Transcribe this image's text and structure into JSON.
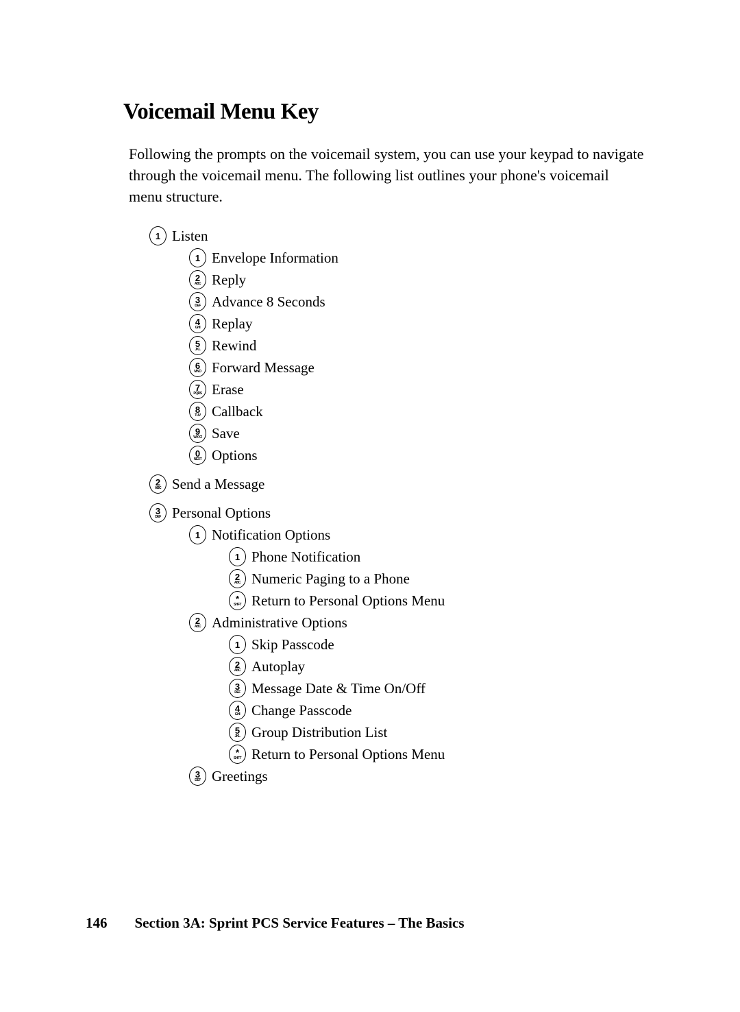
{
  "heading": "Voicemail Menu Key",
  "intro": "Following the prompts on the voicemail system, you can use your keypad to navigate through the voicemail menu. The following list outlines your phone's voicemail menu structure.",
  "menu": {
    "listen": {
      "key": "1",
      "sub": "",
      "label": "Listen"
    },
    "listen_items": [
      {
        "key": "1",
        "sub": "",
        "label": "Envelope Information"
      },
      {
        "key": "2",
        "sub": "ABC",
        "label": "Reply"
      },
      {
        "key": "3",
        "sub": "DEF",
        "label": "Advance 8 Seconds"
      },
      {
        "key": "4",
        "sub": "GHI",
        "label": "Replay"
      },
      {
        "key": "5",
        "sub": "JKL",
        "label": "Rewind"
      },
      {
        "key": "6",
        "sub": "MNO",
        "label": "Forward Message"
      },
      {
        "key": "7",
        "sub": "PQRS",
        "label": "Erase"
      },
      {
        "key": "8",
        "sub": "TUV",
        "label": "Callback"
      },
      {
        "key": "9",
        "sub": "WXYZ",
        "label": "Save"
      },
      {
        "key": "0",
        "sub": "NEXT",
        "label": "Options"
      }
    ],
    "send": {
      "key": "2",
      "sub": "ABC",
      "label": "Send a Message"
    },
    "personal": {
      "key": "3",
      "sub": "DEF",
      "label": "Personal Options"
    },
    "notification": {
      "key": "1",
      "sub": "",
      "label": "Notification Options"
    },
    "notification_items": [
      {
        "key": "1",
        "sub": "",
        "label": "Phone Notification"
      },
      {
        "key": "2",
        "sub": "ABC",
        "label": "Numeric Paging to a Phone"
      },
      {
        "key": "*",
        "sub": "SHFT",
        "label": "Return to Personal Options Menu"
      }
    ],
    "admin": {
      "key": "2",
      "sub": "ABC",
      "label": "Administrative Options"
    },
    "admin_items": [
      {
        "key": "1",
        "sub": "",
        "label": "Skip Passcode"
      },
      {
        "key": "2",
        "sub": "ABC",
        "label": "Autoplay"
      },
      {
        "key": "3",
        "sub": "DEF",
        "label": "Message Date & Time On/Off"
      },
      {
        "key": "4",
        "sub": "GHI",
        "label": "Change Passcode"
      },
      {
        "key": "5",
        "sub": "JKL",
        "label": "Group Distribution List"
      },
      {
        "key": "*",
        "sub": "SHFT",
        "label": "Return to Personal Options Menu"
      }
    ],
    "greetings": {
      "key": "3",
      "sub": "DEF",
      "label": "Greetings"
    }
  },
  "footer": {
    "page": "146",
    "text": "Section 3A: Sprint PCS Service Features – The Basics"
  }
}
